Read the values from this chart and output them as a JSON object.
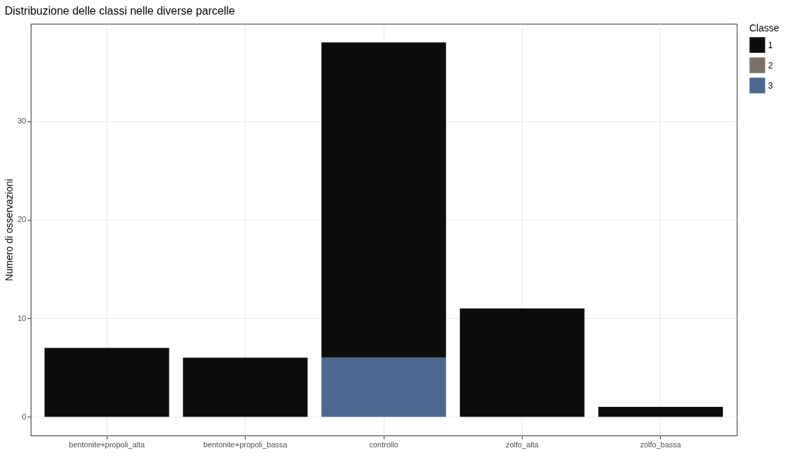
{
  "chart_data": {
    "type": "bar",
    "title": "Distribuzione delle classi nelle diverse parcelle",
    "ylabel": "Numero di osservazioni",
    "legend_title": "Classe",
    "categories": [
      "bentonite+propoli_alta",
      "bentonite+propoli_bassa",
      "controllo",
      "zolfo_alta",
      "zolfo_bassa"
    ],
    "series": [
      {
        "name": "3",
        "color": "#4a6890",
        "values": [
          0,
          0,
          6,
          0,
          0
        ]
      },
      {
        "name": "2",
        "color": "#7a7068",
        "values": [
          0,
          0,
          0,
          0,
          0
        ]
      },
      {
        "name": "1",
        "color": "#0d0d0d",
        "values": [
          7,
          6,
          32,
          11,
          1
        ]
      }
    ],
    "stacked": true,
    "ylim": [
      -1.9,
      39.9
    ],
    "yticks": [
      0,
      10,
      20,
      30
    ],
    "grid": true,
    "legend": "right"
  }
}
